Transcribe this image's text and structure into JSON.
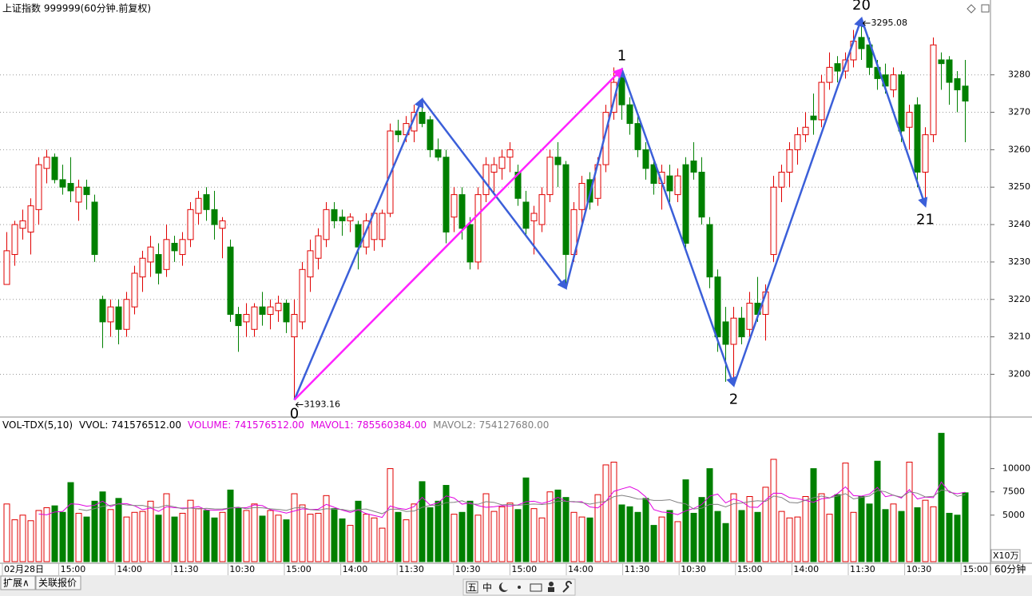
{
  "chart_data": [
    {
      "type": "candlestick",
      "title": "上证指数 999999(60分钟.前复权)",
      "open": [
        3224,
        3232,
        3239,
        3238,
        3244,
        3255,
        3258,
        3252,
        3251,
        3246,
        3250,
        3246,
        3220,
        3214,
        3218,
        3212,
        3218,
        3226,
        3230,
        3232,
        3228,
        3235,
        3232,
        3236,
        3243,
        3248,
        3244,
        3239,
        3234,
        3216,
        3214,
        3212,
        3218,
        3216,
        3217,
        3219,
        3210,
        3214,
        3226,
        3231,
        3236,
        3244,
        3242,
        3241,
        3240,
        3234,
        3236,
        3236,
        3243,
        3265,
        3264,
        3265,
        3270,
        3268,
        3260,
        3258,
        3242,
        3248,
        3240,
        3230,
        3248,
        3254,
        3255,
        3258,
        3254,
        3246,
        3241,
        3240,
        3248,
        3258,
        3256,
        3232,
        3244,
        3252,
        3247,
        3256,
        3270,
        3280,
        3272,
        3267,
        3260,
        3256,
        3251,
        3253,
        3248,
        3256,
        3257,
        3254,
        3240,
        3226,
        3214,
        3208,
        3215,
        3212,
        3219,
        3216,
        3232,
        3250,
        3254,
        3260,
        3264,
        3269,
        3268,
        3278,
        3283,
        3281,
        3284,
        3290,
        3288,
        3282,
        3280,
        3276,
        3280,
        3266,
        3272,
        3254,
        3264,
        3284,
        3284,
        3279,
        3277
      ],
      "high": [
        3238,
        3241,
        3244,
        3247,
        3258,
        3260,
        3259,
        3256,
        3258,
        3252,
        3252,
        3248,
        3221,
        3220,
        3220,
        3222,
        3229,
        3233,
        3237,
        3235,
        3240,
        3237,
        3238,
        3246,
        3249,
        3250,
        3249,
        3242,
        3236,
        3218,
        3219,
        3219,
        3222,
        3220,
        3221,
        3220,
        3220,
        3230,
        3236,
        3239,
        3246,
        3246,
        3244,
        3243,
        3241,
        3243,
        3244,
        3244,
        3267,
        3268,
        3269,
        3272,
        3273.5,
        3269,
        3263,
        3260,
        3250,
        3250,
        3242,
        3250,
        3258,
        3258,
        3260,
        3262,
        3256,
        3249,
        3245,
        3250,
        3260,
        3262,
        3257,
        3246,
        3253,
        3254,
        3258,
        3272,
        3282,
        3281.5,
        3274,
        3269,
        3262,
        3258,
        3256,
        3256,
        3255,
        3258,
        3262,
        3258,
        3242,
        3228,
        3218,
        3218,
        3218,
        3222,
        3226,
        3224,
        3253,
        3256,
        3262,
        3266,
        3270,
        3275,
        3280,
        3286,
        3285,
        3286,
        3292,
        3295.08,
        3290,
        3284,
        3283,
        3282,
        3281,
        3272,
        3274,
        3266,
        3290,
        3286,
        3285,
        3281,
        3284
      ],
      "low": [
        3224,
        3229,
        3236,
        3232,
        3240,
        3251,
        3251,
        3248,
        3246,
        3241,
        3244,
        3230,
        3207,
        3210,
        3208,
        3210,
        3216,
        3222,
        3226,
        3224,
        3226,
        3230,
        3229,
        3234,
        3240,
        3241,
        3236,
        3231,
        3214,
        3206,
        3210,
        3210,
        3213,
        3212,
        3214,
        3211,
        3193.16,
        3212,
        3222,
        3228,
        3234,
        3239,
        3237,
        3238,
        3228,
        3232,
        3233,
        3234,
        3242,
        3262,
        3262,
        3262,
        3266,
        3258,
        3257,
        3235,
        3238,
        3236,
        3228,
        3228,
        3246,
        3248,
        3252,
        3254,
        3245,
        3237,
        3232,
        3238,
        3246,
        3250,
        3223,
        3230,
        3240,
        3244,
        3245,
        3254,
        3268,
        3268,
        3264,
        3258,
        3252,
        3248,
        3244,
        3246,
        3246,
        3233,
        3252,
        3240,
        3223,
        3206,
        3198,
        3197,
        3208,
        3210,
        3214,
        3209,
        3230,
        3246,
        3250,
        3256,
        3262,
        3264,
        3266,
        3276,
        3278,
        3279,
        3282,
        3284,
        3280,
        3276,
        3275,
        3274,
        3262,
        3260,
        3250,
        3245,
        3262,
        3276,
        3272,
        3270,
        3262
      ],
      "close": [
        3233,
        3240,
        3241,
        3245,
        3256,
        3258,
        3252,
        3250,
        3249,
        3250,
        3248,
        3232,
        3214,
        3218,
        3212,
        3220,
        3227,
        3231,
        3234,
        3227,
        3236,
        3233,
        3236,
        3244,
        3247,
        3244,
        3240,
        3241,
        3216,
        3213,
        3216,
        3218,
        3216,
        3218,
        3219,
        3214,
        3216,
        3228,
        3233,
        3237,
        3244,
        3241,
        3241,
        3242,
        3234,
        3241,
        3243,
        3243,
        3265,
        3264,
        3267,
        3270,
        3267,
        3260,
        3258,
        3238,
        3248,
        3239,
        3230,
        3248,
        3256,
        3256,
        3258,
        3260,
        3247,
        3239,
        3243,
        3248,
        3258,
        3256,
        3232,
        3244,
        3251,
        3246,
        3256,
        3270,
        3278,
        3272,
        3267,
        3260,
        3255,
        3251,
        3254,
        3249,
        3253,
        3235,
        3254,
        3242,
        3226,
        3210,
        3208,
        3215,
        3210,
        3219,
        3216,
        3222,
        3250,
        3254,
        3260,
        3264,
        3266,
        3268,
        3278,
        3282,
        3281,
        3284,
        3289,
        3287,
        3282,
        3279,
        3277,
        3280,
        3265,
        3270,
        3254,
        3264,
        3288,
        3283,
        3278,
        3276,
        3273
      ],
      "up_color": "#e00000",
      "down_color": "#008000",
      "ylim": [
        3189,
        3300
      ],
      "yticks": [
        3200,
        3210,
        3220,
        3230,
        3240,
        3250,
        3260,
        3270,
        3280
      ],
      "grid": true,
      "zigzag": {
        "index": [
          36,
          52,
          70,
          77,
          91,
          107,
          115
        ],
        "values": [
          3193.16,
          3273.5,
          3223,
          3281.5,
          3197,
          3295.08,
          3245
        ],
        "color": "#3b5fd9"
      },
      "highlight": {
        "from": 0,
        "to": 3,
        "color": "#ff22ff"
      },
      "wave_labels": [
        {
          "text": "0",
          "point": 0,
          "pos": "below"
        },
        {
          "text": "1",
          "point": 3,
          "pos": "above"
        },
        {
          "text": "2",
          "point": 4,
          "pos": "below"
        },
        {
          "text": "20",
          "point": 5,
          "pos": "above"
        },
        {
          "text": "21",
          "point": 6,
          "pos": "below"
        }
      ],
      "price_labels": [
        0,
        5
      ]
    },
    {
      "type": "bar",
      "indicator": "VOL-TDX(5,10)",
      "texts": [
        {
          "text": "VVOL: 741576512.00",
          "color": "#000000"
        },
        {
          "text": "VOLUME: 741576512.00",
          "color": "#e000e0"
        },
        {
          "text": "MAVOL1: 785560384.00",
          "color": "#e000e0"
        },
        {
          "text": "MAVOL2: 754127680.00",
          "color": "#808080"
        }
      ],
      "values": [
        6200,
        4500,
        5000,
        4400,
        5500,
        5800,
        6000,
        5300,
        8500,
        5200,
        4800,
        6500,
        7500,
        5600,
        6800,
        4800,
        5300,
        5400,
        6500,
        5000,
        7300,
        4800,
        5200,
        6600,
        5700,
        5500,
        4700,
        5300,
        7700,
        5800,
        5500,
        6200,
        4900,
        5500,
        5000,
        4500,
        7300,
        6100,
        5100,
        5200,
        7100,
        5700,
        4600,
        3900,
        6500,
        5100,
        4700,
        3600,
        10000,
        5300,
        4500,
        6200,
        8600,
        5800,
        6500,
        8200,
        5100,
        5300,
        6500,
        5000,
        7300,
        5400,
        5900,
        6300,
        5600,
        9000,
        5700,
        4700,
        7500,
        7700,
        6900,
        5300,
        4800,
        4700,
        7200,
        10400,
        10700,
        6100,
        5900,
        5300,
        6800,
        3900,
        4800,
        5500,
        4300,
        8800,
        5200,
        6900,
        10000,
        5400,
        4100,
        7300,
        5500,
        7000,
        5300,
        8000,
        11000,
        5400,
        4700,
        4800,
        7000,
        10000,
        7300,
        5100,
        7200,
        10600,
        5300,
        7000,
        6200,
        10800,
        5600,
        6200,
        5400,
        10700,
        5800,
        6600,
        5900,
        13800,
        5200,
        5000,
        7400
      ],
      "ma_periods": [
        5,
        10
      ],
      "ma_colors": [
        "#e000e0",
        "#808080"
      ],
      "ylim": [
        0,
        14000
      ],
      "yticks": [
        5000,
        7500,
        10000
      ],
      "unit": "X10万",
      "x_labels": [
        "02月28日",
        "15:00",
        "14:00",
        "11:30",
        "10:30",
        "15:00",
        "14:00",
        "11:30",
        "10:30",
        "15:00",
        "14:00",
        "11:30",
        "10:30",
        "15:00",
        "14:00",
        "11:30",
        "10:30",
        "15:00"
      ],
      "period": "60分钟"
    }
  ],
  "tabs": [
    "扩展∧",
    "关联报价"
  ],
  "toolbar": [
    "五",
    "中"
  ]
}
